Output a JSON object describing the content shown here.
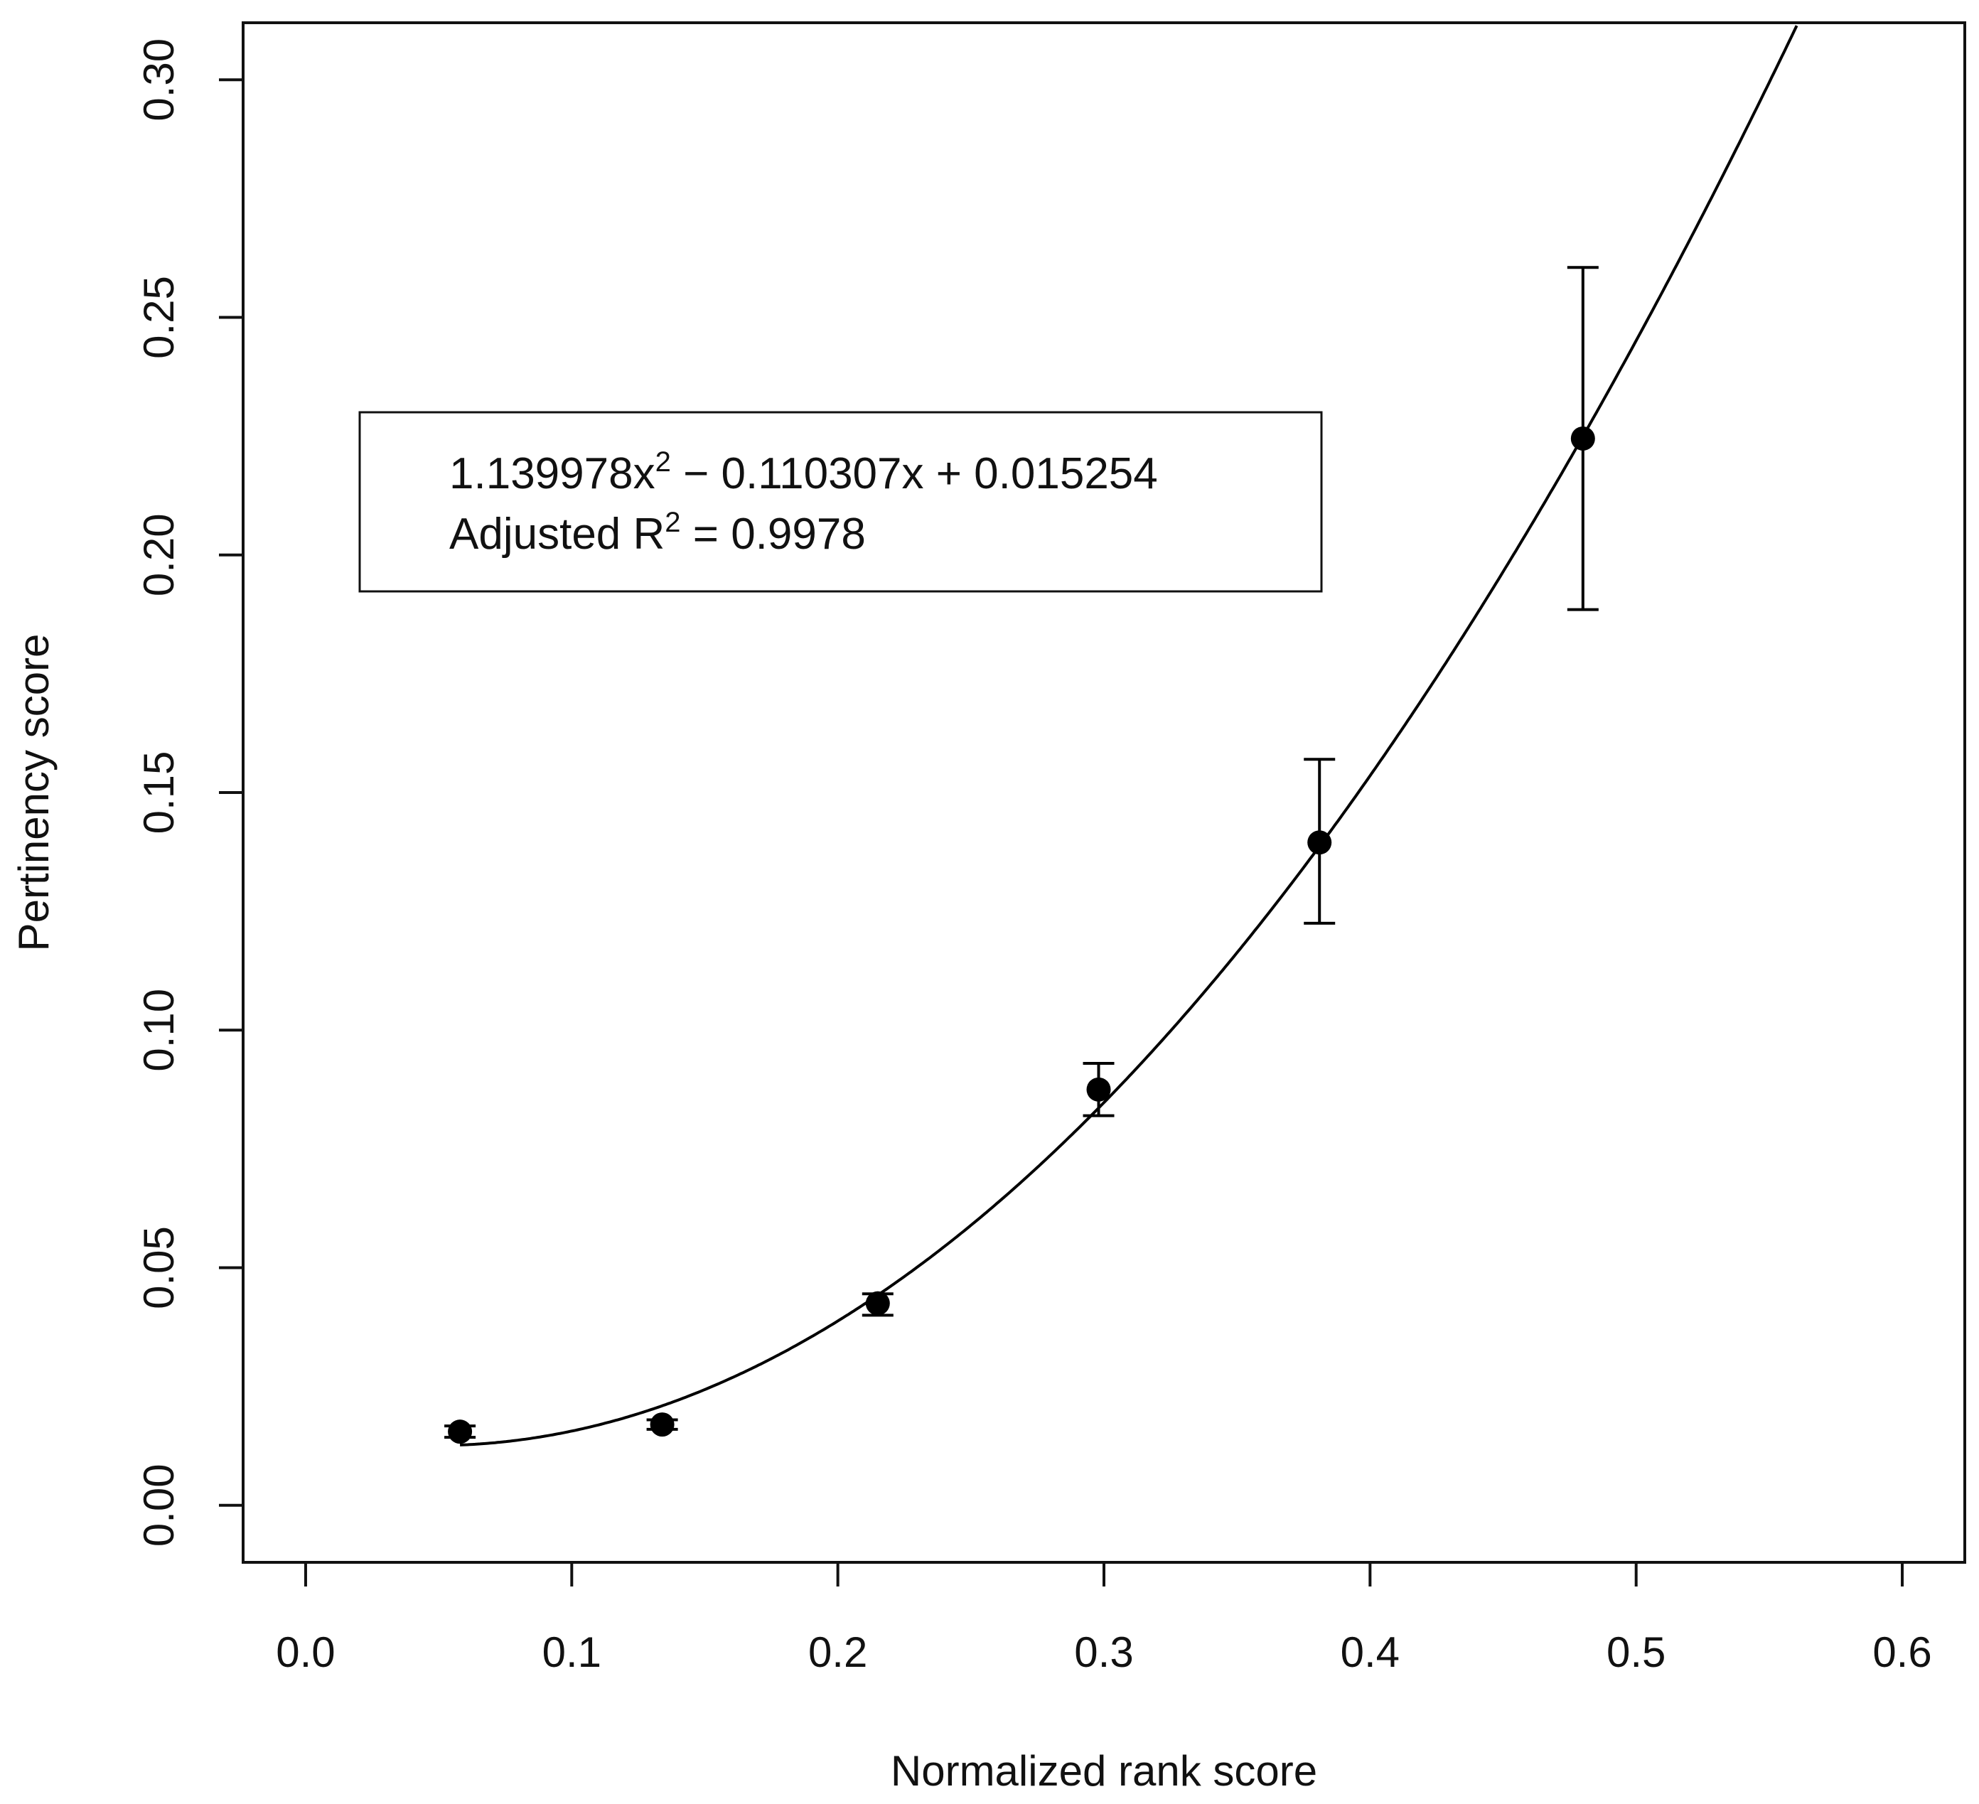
{
  "chart_data": {
    "type": "scatter",
    "xlabel": "Normalized rank score",
    "ylabel": "Pertinency score",
    "xlim": [
      -0.0235,
      0.6235
    ],
    "ylim": [
      -0.012,
      0.312
    ],
    "x_ticks": [
      0.0,
      0.1,
      0.2,
      0.3,
      0.4,
      0.5,
      0.6
    ],
    "x_tick_labels": [
      "0.0",
      "0.1",
      "0.2",
      "0.3",
      "0.4",
      "0.5",
      "0.6"
    ],
    "y_ticks": [
      0.0,
      0.05,
      0.1,
      0.15,
      0.2,
      0.25,
      0.3
    ],
    "y_tick_labels": [
      "0.00",
      "0.05",
      "0.10",
      "0.15",
      "0.20",
      "0.25",
      "0.30"
    ],
    "grid": false,
    "points": [
      {
        "x": 0.058,
        "y": 0.0155,
        "err_low": 0.0143,
        "err_high": 0.0167
      },
      {
        "x": 0.134,
        "y": 0.017,
        "err_low": 0.016,
        "err_high": 0.018
      },
      {
        "x": 0.215,
        "y": 0.0425,
        "err_low": 0.04,
        "err_high": 0.0445
      },
      {
        "x": 0.298,
        "y": 0.0875,
        "err_low": 0.082,
        "err_high": 0.093
      },
      {
        "x": 0.381,
        "y": 0.1395,
        "err_low": 0.1225,
        "err_high": 0.157
      },
      {
        "x": 0.48,
        "y": 0.2245,
        "err_low": 0.1885,
        "err_high": 0.2605
      }
    ],
    "fit": {
      "type": "polynomial",
      "a": 1.139978,
      "b": -0.110307,
      "c": 0.015254,
      "x_start": 0.058
    },
    "annotation": {
      "line1_main": "1.139978x",
      "line1_sup": "2",
      "line1_rest": " − 0.110307x + 0.015254",
      "line2_main": "Adjusted R",
      "line2_sup": "2",
      "line2_rest": " = 0.9978"
    },
    "colors": {
      "marks": "#000000",
      "frame": "#111111"
    }
  }
}
